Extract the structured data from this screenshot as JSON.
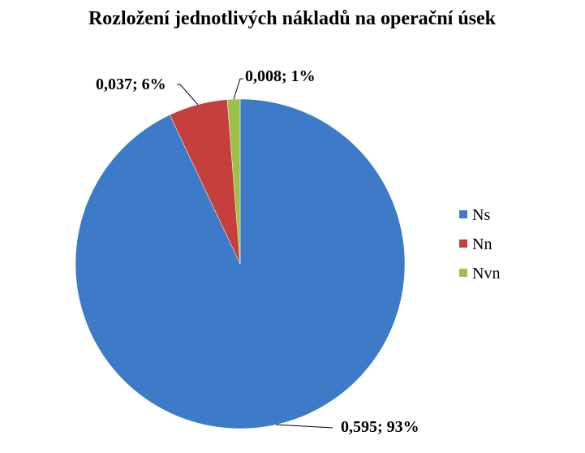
{
  "chart_data": {
    "type": "pie",
    "title": "Rozložení jednotlivých nákladů na operační úsek",
    "slices": [
      {
        "name": "Ns",
        "value": 0.595,
        "percent": "93%",
        "label": "0,595; 93%",
        "color": "#3D7BC8"
      },
      {
        "name": "Nn",
        "value": 0.037,
        "percent": "6%",
        "label": "0,037; 6%",
        "color": "#C5403C"
      },
      {
        "name": "Nvn",
        "value": 0.008,
        "percent": "1%",
        "label": "0,008; 1%",
        "color": "#9BC04B"
      }
    ],
    "legend": {
      "position": "right",
      "items": [
        "Ns",
        "Nn",
        "Nvn"
      ]
    }
  }
}
